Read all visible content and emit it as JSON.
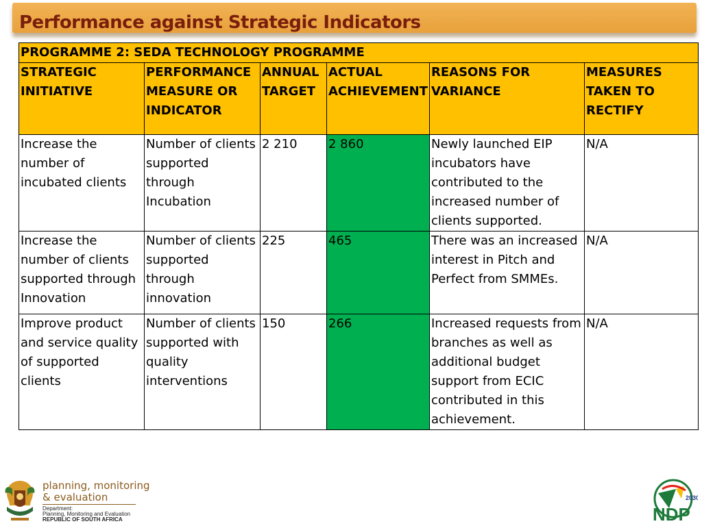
{
  "title": "Performance against Strategic Indicators",
  "programme": "PROGRAMME 2: SEDA TECHNOLOGY PROGRAMME",
  "headers": {
    "initiative": "STRATEGIC INITIATIVE",
    "measure": "PERFORMANCE MEASURE OR INDICATOR",
    "target": "ANNUAL TARGET",
    "actual": "ACTUAL ACHIEVEMENT",
    "reasons": "REASONS FOR VARIANCE",
    "measures": "MEASURES TAKEN TO RECTIFY"
  },
  "rows": [
    {
      "initiative": "Increase the number of incubated clients",
      "measure": "Number of clients supported through Incubation",
      "target": "2 210",
      "actual": "2 860",
      "reasons": "Newly launched EIP incubators have contributed to the increased number of clients supported.",
      "measures": "N/A"
    },
    {
      "initiative": "Increase the number of clients supported through Innovation",
      "measure": "Number of clients supported through innovation",
      "target": "225",
      "actual": "465",
      "reasons": "There was an increased interest in Pitch and Perfect from SMMEs.",
      "measures": "N/A"
    },
    {
      "initiative": "Improve product and service quality of supported clients",
      "measure": "Number of clients supported with quality interventions",
      "target": "150",
      "actual": "266",
      "reasons": "Increased requests from branches as well as additional budget support from ECIC contributed in this achievement.",
      "measures": "N/A"
    }
  ],
  "footer": {
    "brand_line1": "planning, monitoring",
    "brand_line2": "& evaluation",
    "dept_line1": "Department:",
    "dept_line2": "Planning, Monitoring and Evaluation",
    "dept_line3": "REPUBLIC OF SOUTH AFRICA",
    "ndp_year": "2030",
    "ndp_text": "NDP"
  },
  "colors": {
    "header_fill": "#ffc000",
    "actual_fill": "#00b050",
    "title_bar": "#f0ad4e",
    "title_text": "#7a1e0c"
  },
  "icons": {
    "coat_of_arms": "coat-of-arms-icon",
    "ndp_logo": "ndp-2030-logo"
  }
}
